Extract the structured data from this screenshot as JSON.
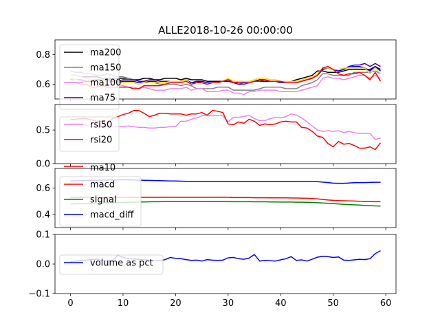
{
  "title": "ALLE2018-10-26 00:00:00",
  "x_ticks": [
    "0",
    "10",
    "20",
    "30",
    "40",
    "50",
    "60"
  ],
  "chart_data": [
    {
      "type": "line",
      "ylim": [
        0.5,
        0.9
      ],
      "yticks": [
        0.6,
        0.8
      ],
      "ytick_labels": [
        "0.6",
        "0.8"
      ],
      "legend": "upper-left",
      "series": [
        {
          "name": "ma200",
          "color": "#000000",
          "values": [
            0.66,
            0.66,
            0.65,
            0.65,
            0.65,
            0.65,
            0.64,
            0.64,
            0.64,
            0.64,
            0.64,
            0.64,
            0.63,
            0.63,
            0.64,
            0.64,
            0.63,
            0.63,
            0.64,
            0.64,
            0.64,
            0.63,
            0.64,
            0.63,
            0.63,
            0.63,
            0.62,
            0.62,
            0.62,
            0.62,
            0.63,
            0.61,
            0.61,
            0.61,
            0.61,
            0.62,
            0.63,
            0.63,
            0.62,
            0.62,
            0.62,
            0.62,
            0.62,
            0.63,
            0.64,
            0.65,
            0.66,
            0.69,
            0.69,
            0.68,
            0.68,
            0.68,
            0.69,
            0.7,
            0.7,
            0.7,
            0.7,
            0.7,
            0.72,
            0.7
          ]
        },
        {
          "name": "ma150",
          "color": "#808080",
          "values": [
            0.69,
            0.68,
            0.68,
            0.67,
            0.67,
            0.66,
            0.66,
            0.67,
            0.66,
            0.65,
            0.65,
            0.64,
            0.63,
            0.62,
            0.62,
            0.61,
            0.61,
            0.6,
            0.6,
            0.6,
            0.6,
            0.59,
            0.6,
            0.59,
            0.57,
            0.57,
            0.57,
            0.57,
            0.58,
            0.58,
            0.58,
            0.56,
            0.56,
            0.56,
            0.56,
            0.56,
            0.57,
            0.58,
            0.58,
            0.58,
            0.58,
            0.57,
            0.57,
            0.57,
            0.59,
            0.6,
            0.61,
            0.63,
            0.67,
            0.67,
            0.66,
            0.66,
            0.66,
            0.66,
            0.68,
            0.68,
            0.68,
            0.68,
            0.69,
            0.67
          ]
        },
        {
          "name": "ma100",
          "color": "#ee82ee",
          "values": [
            0.66,
            0.66,
            0.65,
            0.64,
            0.63,
            0.63,
            0.61,
            0.6,
            0.59,
            0.6,
            0.59,
            0.58,
            0.58,
            0.57,
            0.58,
            0.57,
            0.56,
            0.56,
            0.56,
            0.57,
            0.57,
            0.57,
            0.58,
            0.56,
            0.57,
            0.57,
            0.55,
            0.55,
            0.55,
            0.56,
            0.56,
            0.54,
            0.54,
            0.53,
            0.55,
            0.55,
            0.56,
            0.56,
            0.56,
            0.56,
            0.55,
            0.55,
            0.55,
            0.55,
            0.56,
            0.57,
            0.58,
            0.59,
            0.64,
            0.65,
            0.64,
            0.64,
            0.63,
            0.64,
            0.65,
            0.66,
            0.66,
            0.64,
            0.66,
            0.64
          ]
        },
        {
          "name": "ma75",
          "color": "#4b0082",
          "values": [
            0.64,
            0.63,
            0.63,
            0.62,
            0.62,
            0.63,
            0.63,
            0.63,
            0.63,
            0.62,
            0.63,
            0.63,
            0.63,
            0.62,
            0.62,
            0.63,
            0.63,
            0.62,
            0.62,
            0.62,
            0.62,
            0.62,
            0.63,
            0.61,
            0.61,
            0.62,
            0.61,
            0.61,
            0.61,
            0.62,
            0.63,
            0.62,
            0.61,
            0.61,
            0.61,
            0.62,
            0.62,
            0.62,
            0.62,
            0.62,
            0.61,
            0.61,
            0.61,
            0.61,
            0.62,
            0.63,
            0.64,
            0.66,
            0.7,
            0.71,
            0.7,
            0.69,
            0.7,
            0.72,
            0.73,
            0.73,
            0.74,
            0.72,
            0.74,
            0.72
          ]
        },
        {
          "name": "",
          "color": "#0000ff",
          "values": [
            0.63,
            0.63,
            0.62,
            0.62,
            0.62,
            0.62,
            0.63,
            0.62,
            0.62,
            0.61,
            0.62,
            0.62,
            0.62,
            0.61,
            0.61,
            0.62,
            0.62,
            0.61,
            0.61,
            0.62,
            0.62,
            0.62,
            0.63,
            0.61,
            0.62,
            0.62,
            0.61,
            0.61,
            0.61,
            0.62,
            0.62,
            0.61,
            0.6,
            0.6,
            0.61,
            0.62,
            0.62,
            0.62,
            0.62,
            0.62,
            0.61,
            0.61,
            0.61,
            0.61,
            0.62,
            0.63,
            0.64,
            0.66,
            0.7,
            0.71,
            0.7,
            0.69,
            0.7,
            0.72,
            0.72,
            0.72,
            0.71,
            0.69,
            0.72,
            0.69
          ]
        },
        {
          "name": "",
          "color": "#ffd700",
          "values": [
            0.64,
            0.63,
            0.62,
            0.61,
            0.61,
            0.62,
            0.63,
            0.62,
            0.61,
            0.61,
            0.61,
            0.61,
            0.61,
            0.6,
            0.61,
            0.61,
            0.61,
            0.61,
            0.61,
            0.62,
            0.62,
            0.62,
            0.63,
            0.6,
            0.61,
            0.61,
            0.6,
            0.61,
            0.61,
            0.62,
            0.64,
            0.62,
            0.62,
            0.62,
            0.62,
            0.63,
            0.64,
            0.64,
            0.63,
            0.63,
            0.62,
            0.62,
            0.62,
            0.62,
            0.63,
            0.64,
            0.65,
            0.67,
            0.71,
            0.71,
            0.7,
            0.7,
            0.71,
            0.71,
            0.71,
            0.71,
            0.71,
            0.67,
            0.71,
            0.67
          ]
        },
        {
          "name": "",
          "color": "#ff0000",
          "values": [
            0.61,
            0.61,
            0.6,
            0.6,
            0.58,
            0.58,
            0.59,
            0.58,
            0.58,
            0.58,
            0.58,
            0.58,
            0.57,
            0.57,
            0.59,
            0.59,
            0.59,
            0.59,
            0.6,
            0.61,
            0.61,
            0.61,
            0.62,
            0.6,
            0.61,
            0.61,
            0.6,
            0.61,
            0.61,
            0.62,
            0.63,
            0.61,
            0.61,
            0.6,
            0.61,
            0.62,
            0.62,
            0.63,
            0.62,
            0.62,
            0.62,
            0.61,
            0.61,
            0.61,
            0.62,
            0.63,
            0.64,
            0.66,
            0.71,
            0.72,
            0.7,
            0.67,
            0.66,
            0.67,
            0.67,
            0.68,
            0.66,
            0.63,
            0.68,
            0.62
          ]
        }
      ]
    },
    {
      "type": "line",
      "ylim": [
        0.0,
        0.88
      ],
      "yticks": [
        0.0,
        0.5
      ],
      "ytick_labels": [
        "0.0",
        "0.5"
      ],
      "legend": "left",
      "series": [
        {
          "name": "rsi50",
          "color": "#ee82ee",
          "values": [
            0.6,
            0.6,
            0.59,
            0.57,
            0.55,
            0.55,
            0.55,
            0.56,
            0.55,
            0.55,
            0.55,
            0.56,
            0.55,
            0.54,
            0.54,
            0.53,
            0.53,
            0.54,
            0.54,
            0.55,
            0.55,
            0.63,
            0.63,
            0.66,
            0.68,
            0.71,
            0.72,
            0.71,
            0.72,
            0.71,
            0.62,
            0.69,
            0.69,
            0.7,
            0.72,
            0.67,
            0.64,
            0.64,
            0.67,
            0.69,
            0.68,
            0.7,
            0.74,
            0.72,
            0.68,
            0.62,
            0.56,
            0.5,
            0.48,
            0.49,
            0.48,
            0.49,
            0.46,
            0.48,
            0.46,
            0.45,
            0.45,
            0.45,
            0.36,
            0.38
          ]
        },
        {
          "name": "rsi20",
          "color": "#ff0000",
          "values": [
            0.66,
            0.66,
            0.67,
            0.67,
            0.65,
            0.63,
            0.62,
            0.6,
            0.67,
            0.7,
            0.73,
            0.75,
            0.79,
            0.79,
            0.75,
            0.7,
            0.72,
            0.75,
            0.75,
            0.74,
            0.74,
            0.74,
            0.72,
            0.74,
            0.74,
            0.76,
            0.72,
            0.79,
            0.78,
            0.76,
            0.59,
            0.58,
            0.62,
            0.6,
            0.66,
            0.63,
            0.57,
            0.59,
            0.58,
            0.59,
            0.62,
            0.63,
            0.62,
            0.62,
            0.54,
            0.53,
            0.48,
            0.41,
            0.39,
            0.3,
            0.25,
            0.33,
            0.29,
            0.3,
            0.27,
            0.23,
            0.23,
            0.25,
            0.21,
            0.31
          ]
        }
      ]
    },
    {
      "type": "line",
      "ylim": [
        0.3,
        0.75
      ],
      "yticks": [
        0.4,
        0.6
      ],
      "ytick_labels": [
        "0.4",
        "0.6"
      ],
      "legend": "upper-left",
      "series": [
        {
          "name": "macd",
          "color": "#ff0000",
          "values": [
            0.53,
            0.53,
            0.53,
            0.53,
            0.53,
            0.53,
            0.53,
            0.53,
            0.53,
            0.53,
            0.53,
            0.53,
            0.53,
            0.53,
            0.53,
            0.53,
            0.53,
            0.53,
            0.53,
            0.53,
            0.53,
            0.53,
            0.53,
            0.53,
            0.53,
            0.53,
            0.53,
            0.53,
            0.53,
            0.53,
            0.53,
            0.528,
            0.528,
            0.528,
            0.528,
            0.527,
            0.527,
            0.527,
            0.526,
            0.526,
            0.526,
            0.526,
            0.525,
            0.525,
            0.524,
            0.523,
            0.521,
            0.518,
            0.514,
            0.51,
            0.507,
            0.505,
            0.504,
            0.503,
            0.502,
            0.5,
            0.499,
            0.498,
            0.497,
            0.497
          ]
        },
        {
          "name": "signal",
          "color": "#008000",
          "values": [
            0.48,
            0.481,
            0.482,
            0.483,
            0.484,
            0.485,
            0.487,
            0.488,
            0.489,
            0.49,
            0.491,
            0.492,
            0.493,
            0.494,
            0.495,
            0.496,
            0.497,
            0.497,
            0.498,
            0.498,
            0.498,
            0.498,
            0.498,
            0.498,
            0.498,
            0.498,
            0.498,
            0.498,
            0.498,
            0.498,
            0.497,
            0.497,
            0.497,
            0.497,
            0.497,
            0.496,
            0.496,
            0.496,
            0.495,
            0.495,
            0.494,
            0.494,
            0.494,
            0.493,
            0.493,
            0.492,
            0.491,
            0.489,
            0.487,
            0.485,
            0.482,
            0.48,
            0.477,
            0.475,
            0.473,
            0.471,
            0.469,
            0.467,
            0.465,
            0.464
          ]
        },
        {
          "name": "macd_diff",
          "color": "#0000ff",
          "values": [
            0.654,
            0.656,
            0.657,
            0.658,
            0.659,
            0.66,
            0.661,
            0.662,
            0.663,
            0.663,
            0.664,
            0.663,
            0.662,
            0.661,
            0.66,
            0.659,
            0.658,
            0.657,
            0.656,
            0.655,
            0.654,
            0.653,
            0.652,
            0.652,
            0.652,
            0.652,
            0.652,
            0.652,
            0.652,
            0.652,
            0.651,
            0.65,
            0.65,
            0.65,
            0.65,
            0.651,
            0.651,
            0.651,
            0.651,
            0.651,
            0.651,
            0.651,
            0.651,
            0.651,
            0.651,
            0.651,
            0.65,
            0.649,
            0.646,
            0.642,
            0.638,
            0.637,
            0.637,
            0.639,
            0.641,
            0.642,
            0.642,
            0.643,
            0.645,
            0.645
          ]
        },
        {
          "name": "ma10",
          "color": "#ff0000",
          "values": []
        }
      ]
    },
    {
      "type": "line",
      "ylim": [
        -0.1,
        0.1
      ],
      "yticks": [
        -0.1,
        0.0,
        0.1
      ],
      "ytick_labels": [
        "−0.1",
        "0.0",
        "0.1"
      ],
      "legend": "left",
      "series": [
        {
          "name": "volume as pct",
          "color": "#0000ff",
          "values": [
            0.008,
            0.01,
            0.012,
            0.013,
            0.015,
            0.017,
            0.011,
            0.01,
            0.012,
            0.03,
            0.022,
            0.018,
            0.017,
            0.016,
            0.014,
            0.012,
            0.011,
            0.011,
            0.015,
            0.022,
            0.019,
            0.018,
            0.015,
            0.012,
            0.013,
            0.01,
            0.015,
            0.013,
            0.012,
            0.013,
            0.021,
            0.022,
            0.018,
            0.016,
            0.02,
            0.032,
            0.01,
            0.012,
            0.011,
            0.01,
            0.014,
            0.018,
            0.025,
            0.012,
            0.014,
            0.01,
            0.016,
            0.023,
            0.026,
            0.025,
            0.022,
            0.024,
            0.013,
            0.012,
            0.014,
            0.016,
            0.015,
            0.018,
            0.035,
            0.045
          ]
        }
      ]
    }
  ]
}
